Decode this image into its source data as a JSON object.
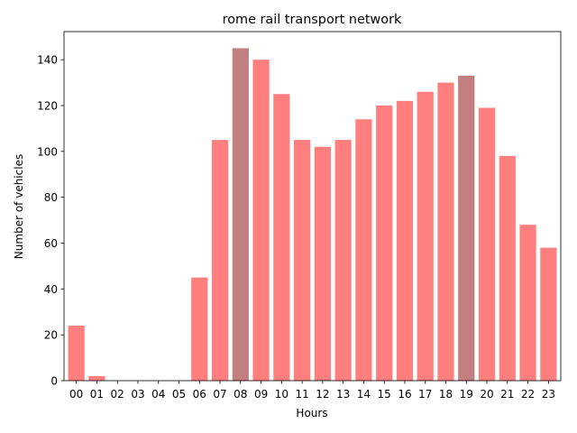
{
  "chart_data": {
    "type": "bar",
    "title": "rome rail transport network",
    "xlabel": "Hours",
    "ylabel": "Number of vehicles",
    "categories": [
      "00",
      "01",
      "02",
      "03",
      "04",
      "05",
      "06",
      "07",
      "08",
      "09",
      "10",
      "11",
      "12",
      "13",
      "14",
      "15",
      "16",
      "17",
      "18",
      "19",
      "20",
      "21",
      "22",
      "23"
    ],
    "values": [
      24,
      2,
      0,
      0,
      0,
      0,
      45,
      105,
      145,
      140,
      125,
      105,
      102,
      105,
      114,
      120,
      122,
      126,
      130,
      133,
      119,
      98,
      68,
      58
    ],
    "highlighted": [
      "08",
      "19"
    ],
    "ylim": [
      0,
      152.25
    ],
    "yticks": [
      0,
      20,
      40,
      60,
      80,
      100,
      120,
      140
    ],
    "grid": false,
    "legend": "none",
    "colors": {
      "bar": "#ff7f7f",
      "highlight": "#c27f7f",
      "axis": "#000000"
    }
  }
}
